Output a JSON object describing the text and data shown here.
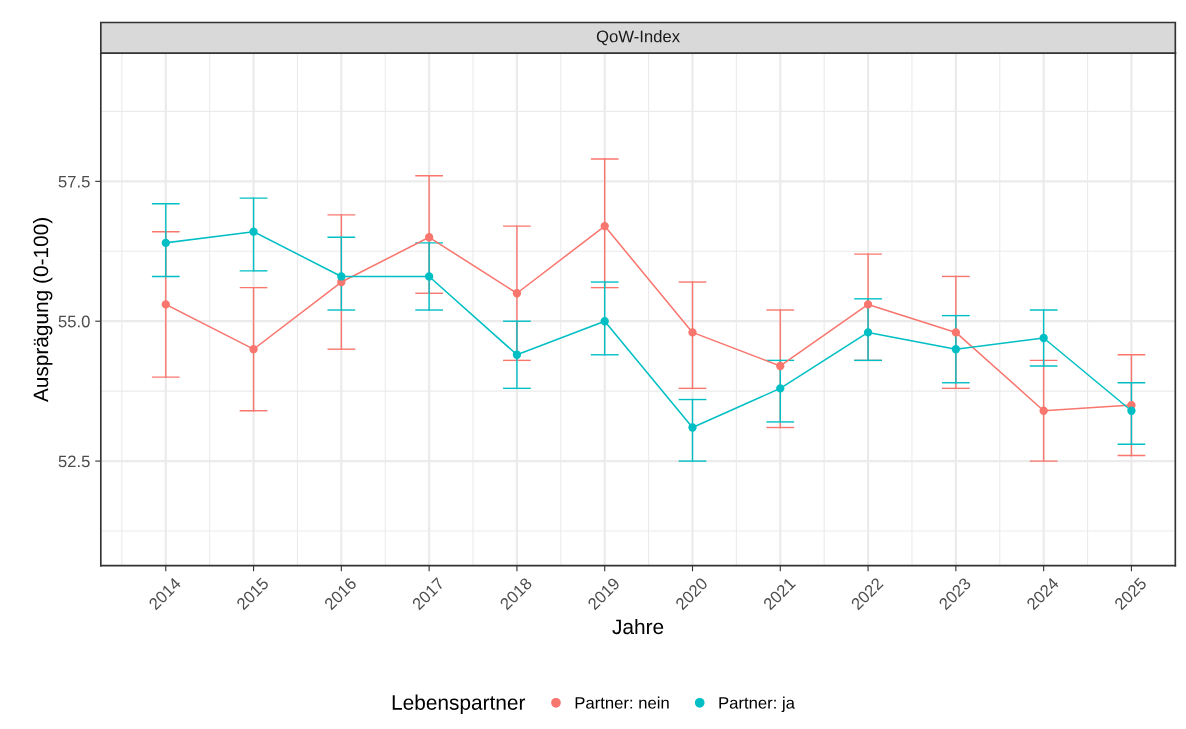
{
  "chart_data": {
    "type": "line",
    "title": "QoW-Index",
    "xlabel": "Jahre",
    "ylabel": "Ausprägung (0-100)",
    "legend_title": "Lebenspartner",
    "x": [
      2014,
      2015,
      2016,
      2017,
      2018,
      2019,
      2020,
      2021,
      2022,
      2023,
      2024,
      2025
    ],
    "series": [
      {
        "name": "Partner: nein",
        "color": "#f8766d",
        "values": [
          55.3,
          54.5,
          55.7,
          56.5,
          55.5,
          56.7,
          54.8,
          54.2,
          55.3,
          54.8,
          53.4,
          53.5
        ],
        "errors": [
          [
            54.0,
            56.6
          ],
          [
            53.4,
            55.6
          ],
          [
            54.5,
            56.9
          ],
          [
            55.5,
            57.6
          ],
          [
            54.3,
            56.7
          ],
          [
            55.6,
            57.9
          ],
          [
            53.8,
            55.7
          ],
          [
            53.1,
            55.2
          ],
          [
            54.3,
            56.2
          ],
          [
            53.8,
            55.8
          ],
          [
            52.5,
            54.3
          ],
          [
            52.6,
            54.4
          ]
        ]
      },
      {
        "name": "Partner: ja",
        "color": "#00bfc4",
        "values": [
          56.4,
          56.6,
          55.8,
          55.8,
          54.4,
          55.0,
          53.1,
          53.8,
          54.8,
          54.5,
          54.7,
          53.4
        ],
        "errors": [
          [
            55.8,
            57.1
          ],
          [
            55.9,
            57.2
          ],
          [
            55.2,
            56.5
          ],
          [
            55.2,
            56.4
          ],
          [
            53.8,
            55.0
          ],
          [
            54.4,
            55.7
          ],
          [
            52.5,
            53.6
          ],
          [
            53.2,
            54.3
          ],
          [
            54.3,
            55.4
          ],
          [
            53.9,
            55.1
          ],
          [
            54.2,
            55.2
          ],
          [
            52.8,
            53.9
          ]
        ]
      }
    ],
    "xlim": [
      2013.26,
      2025.5
    ],
    "ylim": [
      50.63,
      59.79
    ],
    "xticks": [
      2014,
      2015,
      2016,
      2017,
      2018,
      2019,
      2020,
      2021,
      2022,
      2023,
      2024,
      2025
    ],
    "yticks": [
      {
        "value": 52.5,
        "label": "52.5"
      },
      {
        "value": 55,
        "label": "55.0"
      },
      {
        "value": 57.5,
        "label": "57.5"
      }
    ],
    "grid": true,
    "legend": "bottom",
    "marker": "circle",
    "line_style": "solid"
  }
}
